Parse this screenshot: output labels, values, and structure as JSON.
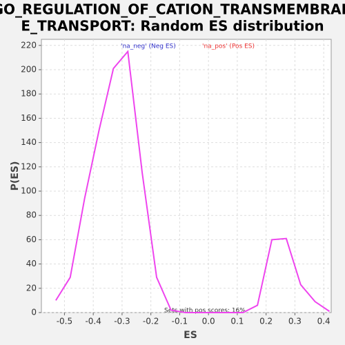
{
  "chart_data": {
    "type": "line",
    "title": [
      "GO_REGULATION_OF_CATION_TRANSMEMBRAN",
      "E_TRANSPORT: Random ES distribution"
    ],
    "xlabel": "ES",
    "ylabel": "P(ES)",
    "legend": [
      "'na_neg' (Neg ES)",
      "'na_pos' (Pos ES)"
    ],
    "legend_colors": [
      "#3333cc",
      "#ee3333"
    ],
    "annotation": "Sets with pos scores: 16%",
    "x": [
      -0.53,
      -0.48,
      -0.43,
      -0.38,
      -0.33,
      -0.28,
      -0.23,
      -0.18,
      -0.13,
      -0.08,
      -0.03,
      0.02,
      0.07,
      0.12,
      0.17,
      0.22,
      0.27,
      0.32,
      0.37,
      0.42
    ],
    "series": [
      {
        "name": "ES",
        "color": "#ee44ee",
        "values": [
          10,
          29,
          94,
          150,
          201,
          215,
          115,
          29,
          2,
          0,
          0,
          0,
          0,
          0,
          6,
          60,
          61,
          23,
          9,
          1
        ]
      }
    ],
    "xlim": [
      -0.58,
      0.426
    ],
    "ylim": [
      0,
      225
    ],
    "xticks": [
      -0.5,
      -0.4,
      -0.3,
      -0.2,
      -0.1,
      {
        "value": 0,
        "label": "0.0"
      },
      0.1,
      0.2,
      0.3,
      0.4
    ],
    "yticks": [
      0,
      20,
      40,
      60,
      80,
      100,
      120,
      140,
      160,
      180,
      200,
      220
    ],
    "grid": true
  }
}
